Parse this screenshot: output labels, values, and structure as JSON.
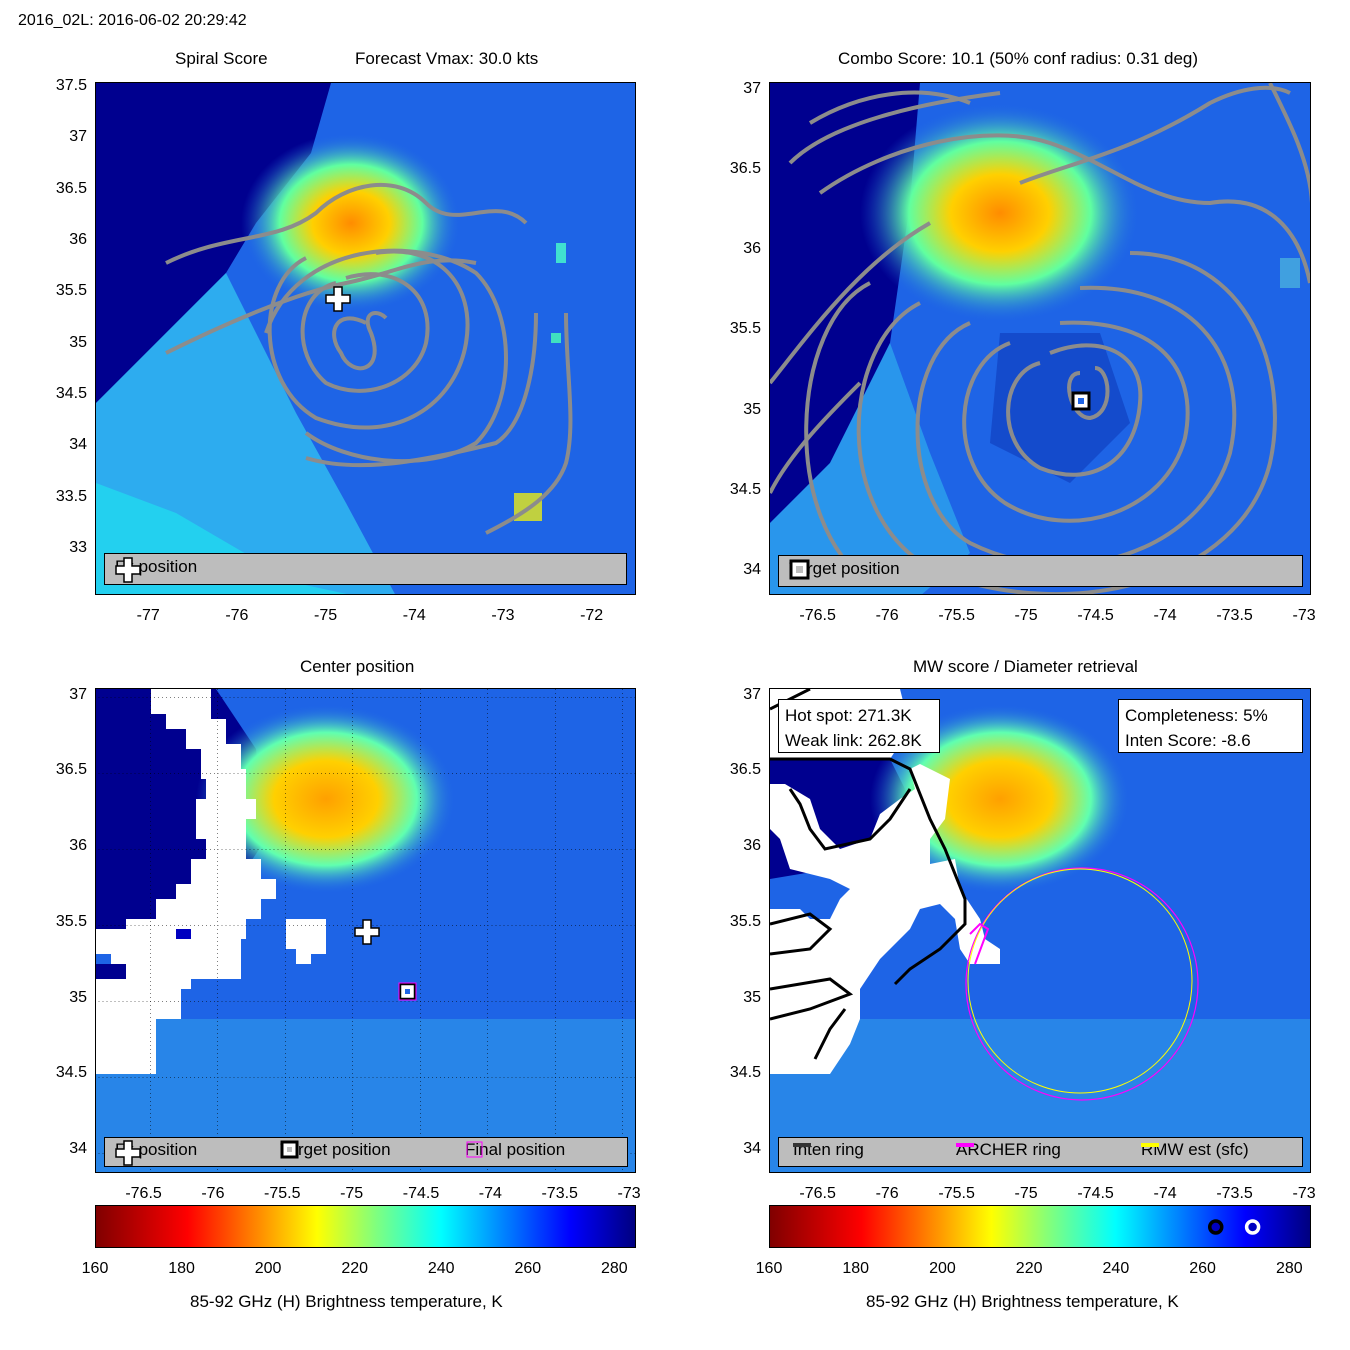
{
  "header": {
    "title": "2016_02L: 2016-06-02 20:29:42"
  },
  "panels": {
    "spiral": {
      "title_left": "Spiral Score",
      "title_right": "Forecast Vmax: 30.0 kts",
      "legend": {
        "fx_label": "Fx position"
      }
    },
    "combo": {
      "title": "Combo Score: 10.1  (50% conf radius: 0.31 deg)",
      "legend": {
        "target_label": "Target position"
      }
    },
    "center": {
      "title": "Center position",
      "legend": {
        "fx_label": "Fx position",
        "target_label": "Target position",
        "final_label": "Final position"
      }
    },
    "mw": {
      "title": "MW score / Diameter retrieval",
      "info_left": {
        "hot_spot": "Hot spot: 271.3K",
        "weak_link": "Weak link: 262.8K"
      },
      "info_right": {
        "completeness": "Completeness: 5%",
        "inten_score": "Inten Score: -8.6"
      },
      "legend": {
        "inten_label": "Inten ring",
        "archer_label": "ARCHER ring",
        "rmw_label": "RMW est (sfc)"
      }
    }
  },
  "colorbar": {
    "label": "85-92 GHz (H) Brightness temperature, K",
    "ticks": [
      "160",
      "180",
      "200",
      "220",
      "240",
      "260",
      "280"
    ],
    "hot_spot_marker_K": 271.3,
    "weak_link_marker_K": 262.8
  },
  "colors": {
    "background_field": "#1e64e6",
    "cold_region": "#00008f",
    "warm_core": "#ffb000",
    "contour": "#8c8c8c",
    "legend_bg": "#bdbdbd",
    "archer_ring": "#ff00ff",
    "rmw_ring": "#ffff00"
  },
  "chart_data": [
    {
      "type": "heatmap",
      "title": "Spiral Score",
      "subtitle": "Forecast Vmax: 30.0 kts",
      "xlim": [
        -77.6,
        -71.5
      ],
      "ylim": [
        32.55,
        37.55
      ],
      "xticks": [
        "-77",
        "-76",
        "-75",
        "-74",
        "-73",
        "-72"
      ],
      "yticks": [
        "37.5",
        "37",
        "36.5",
        "36",
        "35.5",
        "35",
        "34.5",
        "34",
        "33.5",
        "33"
      ],
      "markers": [
        {
          "label": "Fx position",
          "lon": -74.95,
          "lat": 35.45
        }
      ]
    },
    {
      "type": "heatmap",
      "title": "Combo Score: 10.1  (50% conf radius: 0.31 deg)",
      "xlim": [
        -76.85,
        -72.95
      ],
      "ylim": [
        33.85,
        37.05
      ],
      "xticks": [
        "-76.5",
        "-76",
        "-75.5",
        "-75",
        "-74.5",
        "-74",
        "-73.5",
        "-73"
      ],
      "yticks": [
        "37",
        "36.5",
        "36",
        "35.5",
        "35",
        "34.5",
        "34"
      ],
      "markers": [
        {
          "label": "Target position",
          "lon": -74.6,
          "lat": 35.05
        }
      ]
    },
    {
      "type": "heatmap",
      "title": "Center position",
      "xlim": [
        -76.85,
        -72.95
      ],
      "ylim": [
        33.85,
        37.05
      ],
      "xticks": [
        "-76.5",
        "-76",
        "-75.5",
        "-75",
        "-74.5",
        "-74",
        "-73.5",
        "-73"
      ],
      "yticks": [
        "37",
        "36.5",
        "36",
        "35.5",
        "35",
        "34.5",
        "34"
      ],
      "markers": [
        {
          "label": "Fx position",
          "lon": -74.9,
          "lat": 35.45
        },
        {
          "label": "Target position",
          "lon": -74.6,
          "lat": 35.05
        },
        {
          "label": "Final position",
          "lon": -74.6,
          "lat": 35.05
        }
      ]
    },
    {
      "type": "heatmap",
      "title": "MW score / Diameter retrieval",
      "xlim": [
        -76.85,
        -72.95
      ],
      "ylim": [
        33.85,
        37.05
      ],
      "xticks": [
        "-76.5",
        "-76",
        "-75.5",
        "-75",
        "-74.5",
        "-74",
        "-73.5",
        "-73"
      ],
      "yticks": [
        "37",
        "36.5",
        "36",
        "35.5",
        "35",
        "34.5",
        "34"
      ],
      "rings": [
        {
          "label": "ARCHER ring",
          "lon": -74.5,
          "lat": 34.95,
          "radius_deg": 0.85
        },
        {
          "label": "RMW est (sfc)",
          "lon": -74.5,
          "lat": 34.95,
          "radius_deg": 0.82
        }
      ]
    }
  ]
}
